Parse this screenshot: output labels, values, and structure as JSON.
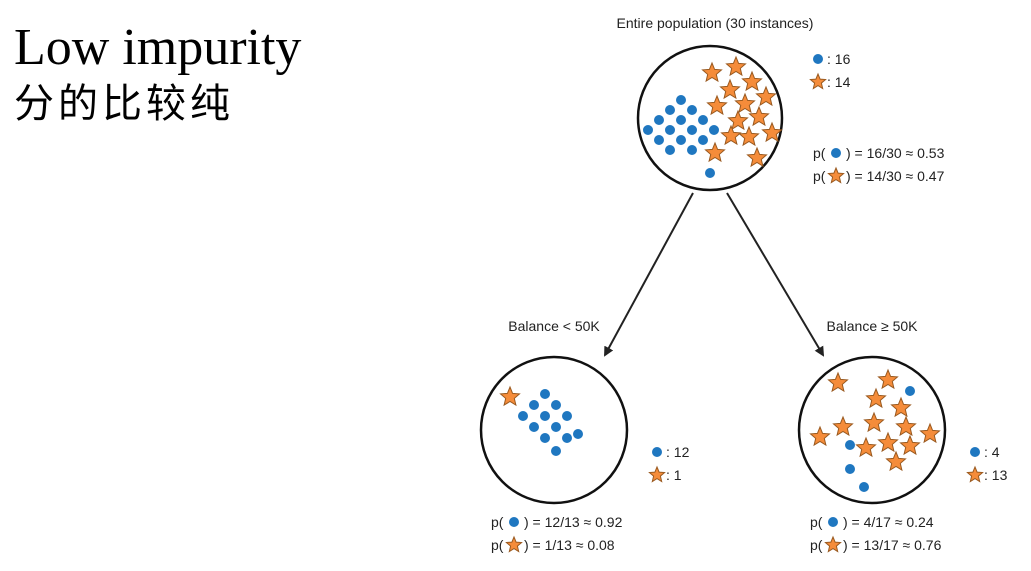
{
  "slide": {
    "title": "Low impurity",
    "subtitle": "分的比较纯"
  },
  "colors": {
    "dot": "#1f77c0",
    "star": "#f58c3a",
    "star_stroke": "#9a5a20",
    "line": "#222222"
  },
  "root": {
    "title": "Entire population (30 instances)",
    "count_dot": ": 16",
    "count_star": ": 14",
    "p_dot": ") = 16/30 ≈ 0.53",
    "p_star": ") = 14/30 ≈ 0.47"
  },
  "left": {
    "title": "Balance < 50K",
    "count_dot": ": 12",
    "count_star": ": 1",
    "p_dot": ") = 12/13 ≈ 0.92",
    "p_star": ") = 1/13 ≈ 0.08"
  },
  "right": {
    "title": "Balance ≥ 50K",
    "count_dot": ": 4",
    "count_star": ": 13",
    "p_dot": ") = 4/17 ≈ 0.24",
    "p_star": ") = 13/17 ≈ 0.76"
  },
  "p_prefix": "p("
}
